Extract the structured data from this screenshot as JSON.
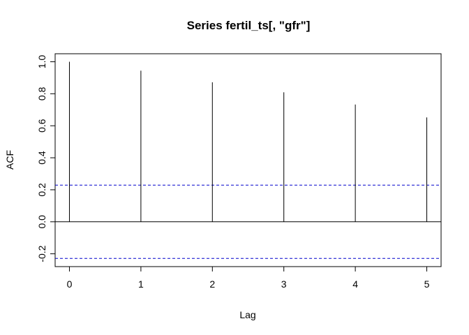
{
  "chart_data": {
    "type": "bar",
    "title": "Series  fertil_ts[, \"gfr\"]",
    "xlabel": "Lag",
    "ylabel": "ACF",
    "x": [
      0,
      1,
      2,
      3,
      4,
      5
    ],
    "values": [
      1.0,
      0.944,
      0.872,
      0.809,
      0.733,
      0.652
    ],
    "confidence_bound": 0.229,
    "xlim": [
      -0.2,
      5.2
    ],
    "ylim": [
      -0.28,
      1.05
    ],
    "x_ticks": [
      "0",
      "1",
      "2",
      "3",
      "4",
      "5"
    ],
    "y_ticks": [
      "-0.2",
      "0.0",
      "0.2",
      "0.4",
      "0.6",
      "0.8",
      "1.0"
    ],
    "grid": false,
    "colors": {
      "spikes": "#000000",
      "zero_line": "#000000",
      "confidence": "#0000cc",
      "frame": "#000000"
    }
  }
}
